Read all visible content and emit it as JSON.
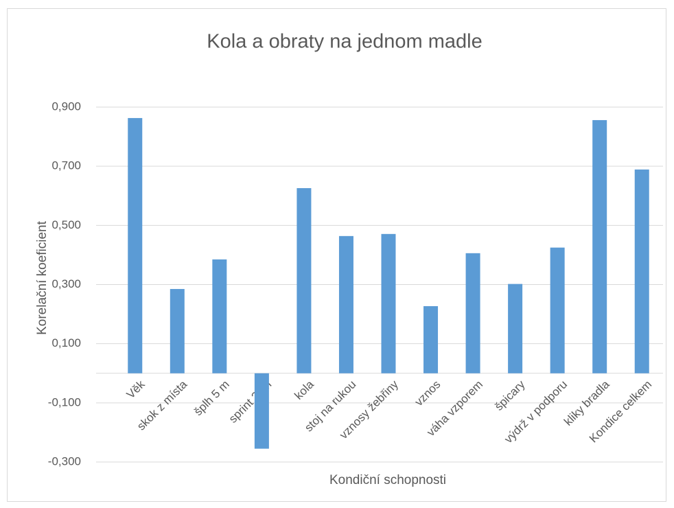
{
  "chart_data": {
    "type": "bar",
    "title": "Kola a obraty na jednom madle",
    "x_label": "Kondiční schopnosti",
    "y_label": "Korelační koeficient",
    "categories": [
      "Věk",
      "skok z místa",
      "šplh 5 m",
      "sprint 20m",
      "kola",
      "stoj na rukou",
      "vznosy žebřiny",
      "vznos",
      "váha vzporem",
      "špicary",
      "výdrž v podporu",
      "kliky bradla",
      "Kondice celkem"
    ],
    "values": [
      0.863,
      0.285,
      0.385,
      -0.255,
      0.626,
      0.464,
      0.471,
      0.227,
      0.406,
      0.302,
      0.425,
      0.856,
      0.689
    ],
    "color": "#5b9bd5",
    "ylim": [
      -0.3,
      0.9
    ],
    "yticks": [
      {
        "value": -0.3,
        "label": "-0,300"
      },
      {
        "value": -0.1,
        "label": "-0,100"
      },
      {
        "value": 0.1,
        "label": "0,100"
      },
      {
        "value": 0.3,
        "label": "0,300"
      },
      {
        "value": 0.5,
        "label": "0,500"
      },
      {
        "value": 0.7,
        "label": "0,700"
      },
      {
        "value": 0.9,
        "label": "0,900"
      }
    ],
    "grid": true
  }
}
